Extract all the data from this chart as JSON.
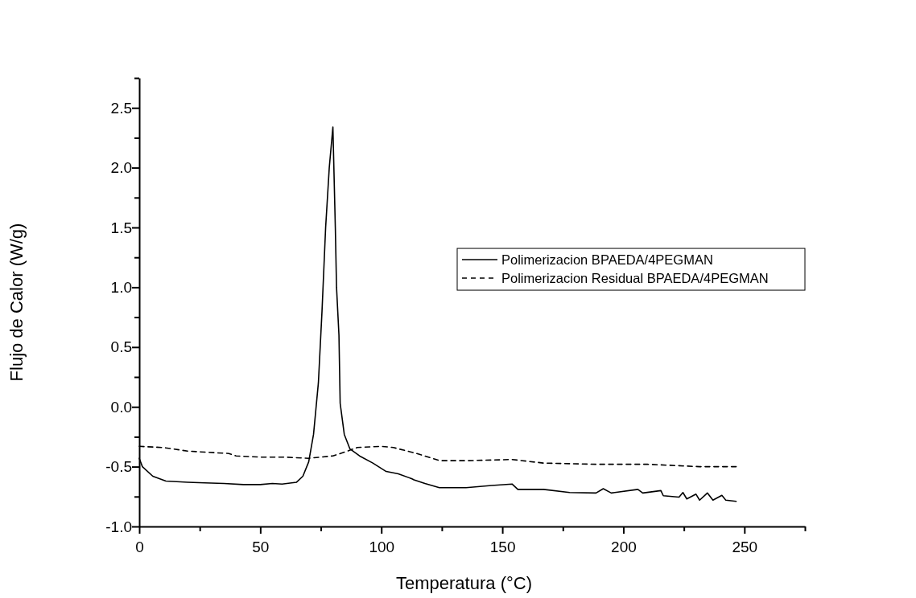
{
  "chart_data": {
    "type": "line",
    "xlabel": "Temperatura (°C)",
    "ylabel": "Flujo de Calor (W/g)",
    "xlim": [
      0,
      275
    ],
    "xticks": [
      0,
      {
        "value": 25,
        "label": null
      },
      50,
      {
        "value": 75,
        "label": null
      },
      100,
      {
        "value": 125,
        "label": null
      },
      150,
      {
        "value": 175,
        "label": null
      },
      200,
      {
        "value": 225,
        "label": null
      },
      250,
      {
        "value": 275,
        "label": null
      }
    ],
    "ylim": [
      -1.0,
      2.75
    ],
    "yticks": [
      {
        "value": -1,
        "label": "-1.0"
      },
      {
        "value": -0.75,
        "label": null
      },
      {
        "value": -0.5,
        "label": "-0.5"
      },
      {
        "value": -0.25,
        "label": null
      },
      {
        "value": 0,
        "label": "0.0"
      },
      {
        "value": 0.25,
        "label": null
      },
      {
        "value": 0.5,
        "label": "0.5"
      },
      {
        "value": 0.75,
        "label": null
      },
      {
        "value": 1,
        "label": "1.0"
      },
      {
        "value": 1.25,
        "label": null
      },
      {
        "value": 1.5,
        "label": "1.5"
      },
      {
        "value": 1.75,
        "label": null
      },
      {
        "value": 2,
        "label": "2.0"
      },
      {
        "value": 2.25,
        "label": null
      },
      {
        "value": 2.5,
        "label": "2.5"
      },
      {
        "value": 2.75,
        "label": null
      }
    ],
    "grid": false,
    "legend": "right",
    "marker": "none",
    "series": [
      {
        "name": "Polimerizacion BPAEDA/4PEGMAN",
        "color": "#000000",
        "line_style": "solid",
        "x": [
          0,
          1.3,
          5.6,
          11,
          20,
          27,
          35,
          43,
          50,
          55,
          59,
          65,
          67.6,
          70,
          72,
          74,
          75.5,
          77,
          78.5,
          80,
          81,
          81.5,
          82.5,
          83,
          84.7,
          87,
          91,
          96.5,
          102,
          107,
          112.5,
          113.5,
          118,
          124,
          135,
          145.6,
          154,
          156.4,
          167,
          177.8,
          188.7,
          191.7,
          195,
          206,
          208,
          215.5,
          216.5,
          223,
          224.6,
          226.2,
          230,
          231.5,
          234.7,
          237,
          240.7,
          242.3,
          246.6
        ],
        "values": [
          -0.43,
          -0.5,
          -0.58,
          -0.62,
          -0.63,
          -0.635,
          -0.64,
          -0.65,
          -0.65,
          -0.64,
          -0.645,
          -0.63,
          -0.58,
          -0.46,
          -0.23,
          0.2,
          0.8,
          1.5,
          2.0,
          2.34,
          1.5,
          1.0,
          0.6,
          0.03,
          -0.23,
          -0.35,
          -0.41,
          -0.47,
          -0.54,
          -0.56,
          -0.6,
          -0.61,
          -0.64,
          -0.676,
          -0.676,
          -0.657,
          -0.645,
          -0.69,
          -0.69,
          -0.716,
          -0.72,
          -0.684,
          -0.72,
          -0.69,
          -0.72,
          -0.7,
          -0.743,
          -0.755,
          -0.716,
          -0.77,
          -0.73,
          -0.78,
          -0.72,
          -0.78,
          -0.74,
          -0.78,
          -0.79
        ]
      },
      {
        "name": "Polimerizacion Residual BPAEDA/4PEGMAN",
        "color": "#000000",
        "line_style": "dashed",
        "x": [
          0,
          10,
          20,
          37,
          40,
          50,
          60,
          70,
          80,
          86,
          90,
          100,
          105,
          114.6,
          124.2,
          135,
          154,
          167,
          188.7,
          210,
          231.5,
          246.6
        ],
        "values": [
          -0.33,
          -0.34,
          -0.37,
          -0.39,
          -0.41,
          -0.42,
          -0.42,
          -0.43,
          -0.41,
          -0.37,
          -0.34,
          -0.33,
          -0.34,
          -0.39,
          -0.45,
          -0.45,
          -0.44,
          -0.47,
          -0.48,
          -0.48,
          -0.5,
          -0.5
        ]
      }
    ]
  }
}
